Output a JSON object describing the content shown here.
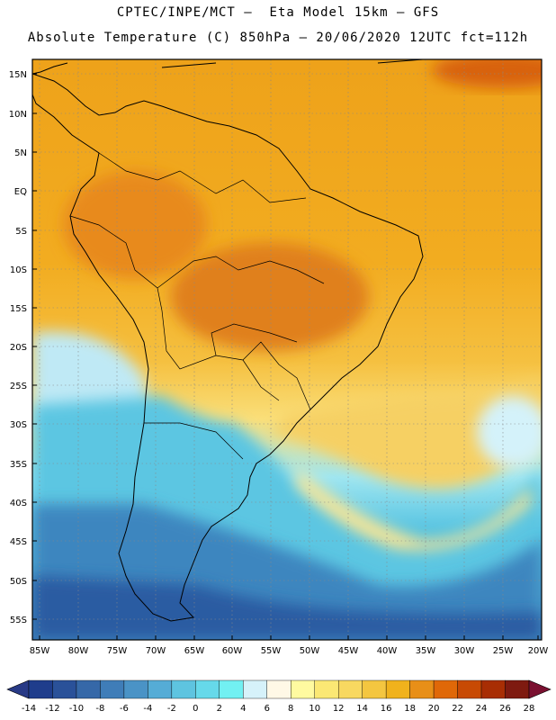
{
  "header": {
    "line1": "CPTEC/INPE/MCT –  Eta Model 15km – GFS",
    "line2": "Absolute Temperature (C) 850hPa – 20/06/2020 12UTC fct=112h"
  },
  "lat_labels": [
    "15N",
    "10N",
    "5N",
    "EQ",
    "5S",
    "10S",
    "15S",
    "20S",
    "25S",
    "30S",
    "35S",
    "40S",
    "45S",
    "50S",
    "55S"
  ],
  "lon_labels": [
    "85W",
    "80W",
    "75W",
    "70W",
    "65W",
    "60W",
    "55W",
    "50W",
    "45W",
    "40W",
    "35W",
    "30W",
    "25W",
    "20W"
  ],
  "colorbar": {
    "labels": [
      "-14",
      "-12",
      "-10",
      "-8",
      "-6",
      "-4",
      "-2",
      "0",
      "2",
      "4",
      "6",
      "8",
      "10",
      "12",
      "14",
      "16",
      "18",
      "20",
      "22",
      "24",
      "26",
      "28"
    ],
    "colors": [
      "#1f3d8c",
      "#2a5199",
      "#3668a8",
      "#3f7db8",
      "#4a93c6",
      "#55acd6",
      "#5ec4e0",
      "#66d9ea",
      "#72f0f2",
      "#d6f2fa",
      "#fff8e6",
      "#fffaa0",
      "#fbe874",
      "#f8d860",
      "#f4c640",
      "#f0b21c",
      "#e88f18",
      "#e06808",
      "#c84a04",
      "#a82e04",
      "#7e1a10"
    ],
    "under_color": "#283a86",
    "over_color": "#7a1030"
  }
}
